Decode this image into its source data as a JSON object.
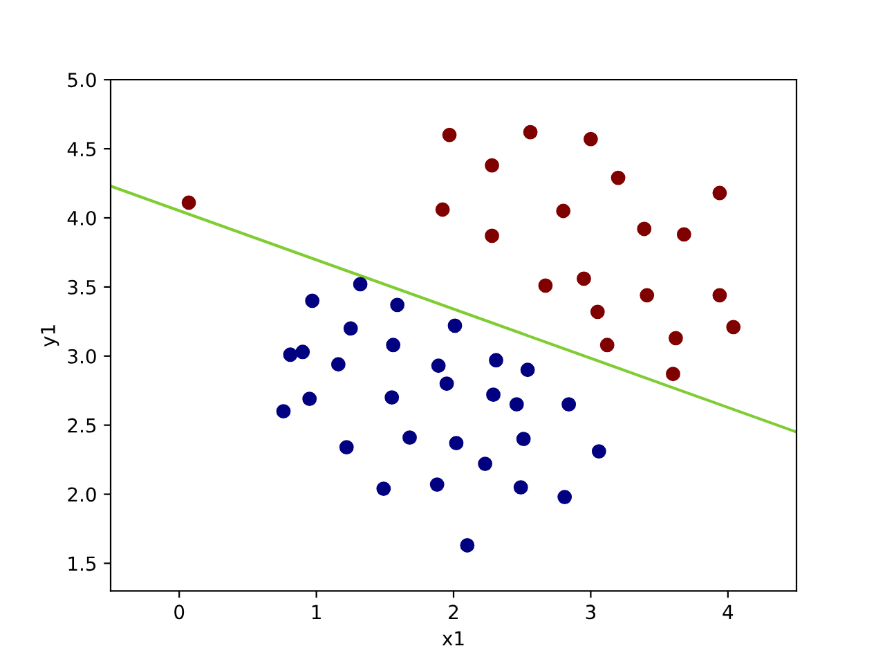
{
  "chart_data": {
    "type": "scatter",
    "xlabel": "x1",
    "ylabel": "y1",
    "xlim": [
      -0.5,
      4.5
    ],
    "ylim": [
      1.3,
      5.0
    ],
    "xticks": [
      0,
      1,
      2,
      3,
      4
    ],
    "yticks": [
      1.5,
      {
        "value": 2.0,
        "label": "2.0"
      },
      2.5,
      {
        "value": 3.0,
        "label": "3.0"
      },
      3.5,
      {
        "value": 4.0,
        "label": "4.0"
      },
      4.5,
      {
        "value": 5.0,
        "label": "5.0"
      }
    ],
    "grid": false,
    "series": [
      {
        "color": "#800000",
        "marker": "circle",
        "x": [
          0.07,
          1.97,
          2.56,
          3.0,
          2.28,
          3.2,
          1.92,
          2.8,
          3.94,
          2.28,
          3.39,
          3.68,
          2.67,
          2.95,
          3.05,
          3.41,
          3.94,
          3.12,
          4.04,
          3.62,
          3.6
        ],
        "values": [
          4.11,
          4.6,
          4.62,
          4.57,
          4.38,
          4.29,
          4.06,
          4.05,
          4.18,
          3.87,
          3.92,
          3.88,
          3.51,
          3.56,
          3.32,
          3.44,
          3.44,
          3.08,
          3.21,
          3.13,
          2.87
        ]
      },
      {
        "color": "#000080",
        "marker": "circle",
        "x": [
          0.97,
          1.32,
          1.59,
          1.25,
          0.9,
          0.81,
          1.56,
          2.01,
          1.16,
          1.89,
          2.31,
          2.54,
          1.95,
          0.76,
          0.95,
          1.55,
          2.29,
          2.46,
          2.84,
          1.68,
          2.51,
          1.22,
          2.02,
          3.06,
          2.23,
          1.49,
          1.88,
          2.49,
          2.81,
          2.1
        ],
        "values": [
          3.4,
          3.52,
          3.37,
          3.2,
          3.03,
          3.01,
          3.08,
          3.22,
          2.94,
          2.93,
          2.97,
          2.9,
          2.8,
          2.6,
          2.69,
          2.7,
          2.72,
          2.65,
          2.65,
          2.41,
          2.4,
          2.34,
          2.37,
          2.31,
          2.22,
          2.04,
          2.07,
          2.05,
          1.98,
          1.63
        ]
      },
      {
        "type": "line",
        "color": "#7fcc33",
        "marker": "none",
        "line_style": "solid",
        "x": [
          -0.5,
          4.5
        ],
        "values": [
          4.23,
          2.45
        ]
      }
    ]
  }
}
